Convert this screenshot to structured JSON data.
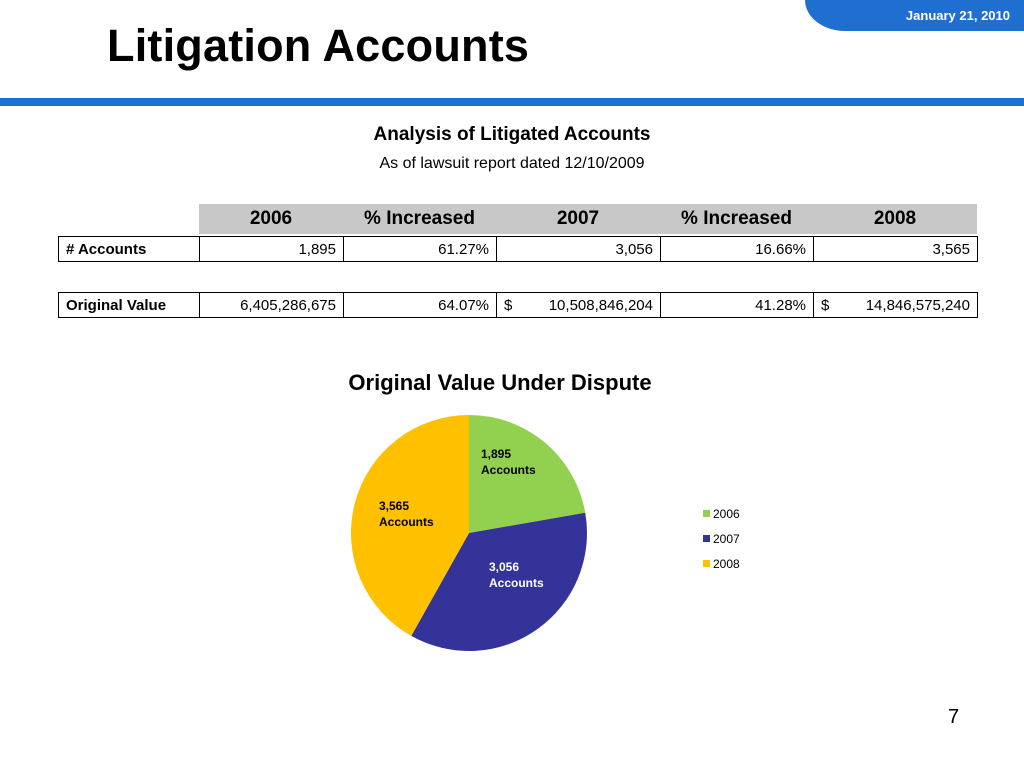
{
  "header": {
    "date": "January 21, 2010",
    "title": "Litigation Accounts"
  },
  "analysis": {
    "title": "Analysis of Litigated Accounts",
    "subtitle": "As of lawsuit report dated 12/10/2009"
  },
  "table": {
    "columns": [
      "2006",
      "%  Increased",
      "2007",
      "%  Increased",
      "2008"
    ],
    "rows": {
      "accounts": {
        "label": "# Accounts",
        "v2006": "1,895",
        "inc1": "61.27%",
        "v2007": "3,056",
        "inc2": "16.66%",
        "v2008": "3,565"
      },
      "original_value": {
        "label": "Original Value",
        "v2006": "6,405,286,675",
        "inc1": "64.07%",
        "v2007_currency": "$",
        "v2007": "10,508,846,204",
        "inc2": "41.28%",
        "v2008_currency": "$",
        "v2008": "14,846,575,240"
      }
    }
  },
  "chart_data": {
    "type": "pie",
    "title": "Original Value Under Dispute",
    "categories": [
      "2006",
      "2007",
      "2008"
    ],
    "values": [
      1895,
      3056,
      3565
    ],
    "slice_labels": [
      [
        "1,895",
        "Accounts"
      ],
      [
        "3,056",
        "Accounts"
      ],
      [
        "3,565",
        "Accounts"
      ]
    ],
    "colors": [
      "#92d050",
      "#333399",
      "#ffc000"
    ],
    "legend": "right"
  },
  "page_number": "7"
}
